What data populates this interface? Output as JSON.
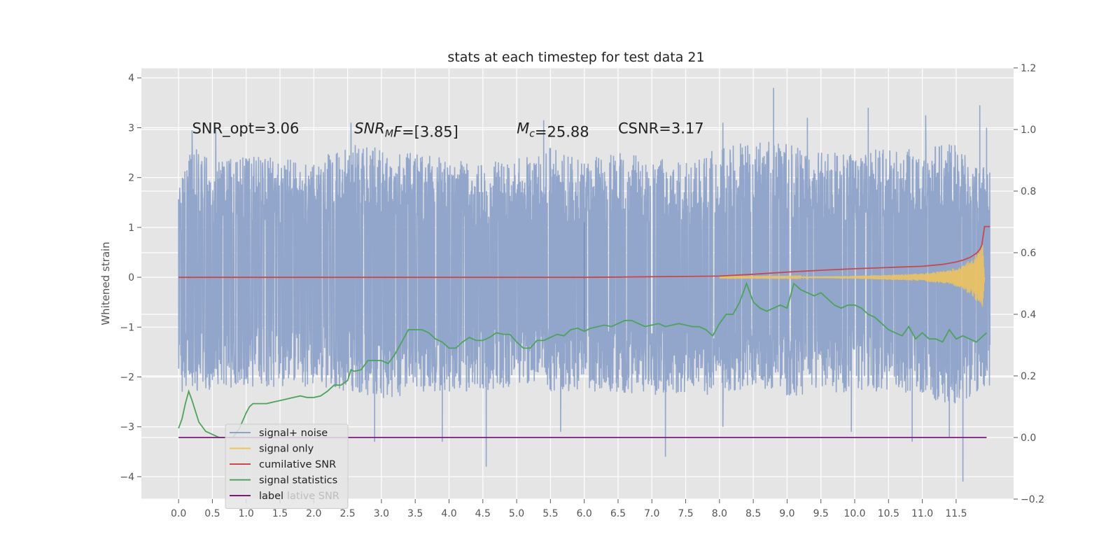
{
  "chart_data": {
    "type": "line",
    "title": "stats at each timestep for test data 21",
    "ylabel": "Whitened strain",
    "ylabel_right": "",
    "xlim": [
      -0.55,
      12.35
    ],
    "ylim": [
      -4.45,
      4.2
    ],
    "ylim_right": [
      -0.2,
      1.2
    ],
    "x_ticks": [
      0.0,
      0.5,
      1.0,
      1.5,
      2.0,
      2.5,
      3.0,
      3.5,
      4.0,
      4.5,
      5.0,
      5.5,
      6.0,
      6.5,
      7.0,
      7.5,
      8.0,
      8.5,
      9.0,
      9.5,
      10.0,
      10.5,
      11.0,
      11.5
    ],
    "x_tick_labels": [
      "0.0",
      "0.5",
      "1.0",
      "1.5",
      "2.0",
      "2.5",
      "3.0",
      "3.5",
      "4.0",
      "4.5",
      "5.0",
      "5.5",
      "6.0",
      "6.5",
      "7.0",
      "7.5",
      "8.0",
      "8.5",
      "9.0",
      "9.5",
      "10.0",
      "10.5",
      "11.0",
      "11.5"
    ],
    "y_ticks": [
      -4,
      -3,
      -2,
      -1,
      0,
      1,
      2,
      3,
      4
    ],
    "y_tick_labels": [
      "−4",
      "−3",
      "−2",
      "−1",
      "0",
      "1",
      "2",
      "3",
      "4"
    ],
    "y_ticks_right": [
      -0.2,
      0.0,
      0.2,
      0.4,
      0.6,
      0.8,
      1.0,
      1.2
    ],
    "y_tick_labels_right": [
      "−0.2",
      "0.0",
      "0.2",
      "0.4",
      "0.6",
      "0.8",
      "1.0",
      "1.2"
    ],
    "grid": true,
    "legend_position": "lower-left",
    "annotations": [
      {
        "x": 0.2,
        "y": 3.0,
        "parts": [
          {
            "t": "SNR_opt=3.06"
          }
        ]
      },
      {
        "x": 2.6,
        "y": 3.0,
        "parts": [
          {
            "t": "SNR",
            "i": true
          },
          {
            "t": "M",
            "i": true,
            "sub": true
          },
          {
            "t": "F",
            "i": true
          },
          {
            "t": "=[3.85]"
          }
        ]
      },
      {
        "x": 5.0,
        "y": 3.0,
        "parts": [
          {
            "t": "M",
            "i": true
          },
          {
            "t": "c",
            "i": true,
            "sub": true
          },
          {
            "t": "=25.88"
          }
        ]
      },
      {
        "x": 6.5,
        "y": 3.0,
        "parts": [
          {
            "t": "CSNR=3.17"
          }
        ]
      }
    ],
    "legend": [
      {
        "name": "signal+ noise",
        "color": "#8da2c9"
      },
      {
        "name": "signal only",
        "color": "#f2c458"
      },
      {
        "name": "cumilative SNR",
        "color": "#c9484a"
      },
      {
        "name": "signal statistics",
        "color": "#4ca35a"
      },
      {
        "name": "label",
        "color": "#7b1a7b"
      }
    ],
    "legend_ghost_text": "lative SNR",
    "series": [
      {
        "name": "signal+ noise",
        "axis": "left",
        "color": "#8da2c9",
        "x_range": [
          0.0,
          12.0
        ],
        "envelope_upper": [
          [
            0.0,
            1.8
          ],
          [
            0.2,
            2.9
          ],
          [
            0.5,
            2.3
          ],
          [
            1.0,
            2.5
          ],
          [
            1.5,
            2.4
          ],
          [
            2.0,
            2.3
          ],
          [
            2.5,
            2.7
          ],
          [
            3.0,
            2.6
          ],
          [
            3.5,
            2.5
          ],
          [
            4.0,
            2.4
          ],
          [
            4.5,
            2.3
          ],
          [
            5.0,
            2.4
          ],
          [
            5.5,
            2.6
          ],
          [
            6.0,
            2.4
          ],
          [
            6.5,
            2.5
          ],
          [
            7.0,
            2.4
          ],
          [
            7.5,
            2.3
          ],
          [
            8.0,
            2.6
          ],
          [
            8.5,
            2.8
          ],
          [
            9.0,
            2.7
          ],
          [
            9.5,
            2.5
          ],
          [
            10.0,
            2.5
          ],
          [
            10.5,
            2.6
          ],
          [
            11.0,
            2.6
          ],
          [
            11.5,
            2.7
          ],
          [
            11.95,
            2.2
          ]
        ],
        "envelope_lower": [
          [
            0.0,
            -2.3
          ],
          [
            0.5,
            -2.3
          ],
          [
            1.0,
            -2.2
          ],
          [
            1.5,
            -2.2
          ],
          [
            2.0,
            -2.2
          ],
          [
            2.5,
            -2.3
          ],
          [
            3.0,
            -2.5
          ],
          [
            3.5,
            -2.3
          ],
          [
            4.0,
            -2.3
          ],
          [
            4.5,
            -2.3
          ],
          [
            5.0,
            -2.2
          ],
          [
            5.5,
            -2.3
          ],
          [
            6.0,
            -2.3
          ],
          [
            6.5,
            -2.3
          ],
          [
            7.0,
            -2.4
          ],
          [
            7.5,
            -2.3
          ],
          [
            8.0,
            -2.4
          ],
          [
            8.5,
            -2.2
          ],
          [
            9.0,
            -2.4
          ],
          [
            9.5,
            -2.3
          ],
          [
            10.0,
            -2.4
          ],
          [
            10.5,
            -2.3
          ],
          [
            11.0,
            -2.4
          ],
          [
            11.5,
            -2.6
          ],
          [
            11.95,
            -2.2
          ]
        ],
        "peaks": [
          [
            0.2,
            2.95
          ],
          [
            0.55,
            3.0
          ],
          [
            2.55,
            3.1
          ],
          [
            5.4,
            3.15
          ],
          [
            8.05,
            3.1
          ],
          [
            8.8,
            3.8
          ],
          [
            9.3,
            3.2
          ],
          [
            10.2,
            3.4
          ],
          [
            11.05,
            3.25
          ],
          [
            11.85,
            3.45
          ],
          [
            11.95,
            3.0
          ]
        ],
        "troughs": [
          [
            2.9,
            -3.3
          ],
          [
            3.9,
            -3.3
          ],
          [
            4.55,
            -3.8
          ],
          [
            5.65,
            -3.1
          ],
          [
            7.2,
            -3.6
          ],
          [
            8.05,
            -3.0
          ],
          [
            9.95,
            -3.1
          ],
          [
            10.85,
            -3.3
          ],
          [
            11.4,
            -3.2
          ],
          [
            11.6,
            -4.1
          ]
        ]
      },
      {
        "name": "signal only",
        "axis": "left",
        "color": "#f2c458",
        "envelope": [
          [
            0.0,
            0.0
          ],
          [
            9.0,
            0.01
          ],
          [
            10.0,
            0.03
          ],
          [
            10.5,
            0.05
          ],
          [
            11.0,
            0.08
          ],
          [
            11.4,
            0.15
          ],
          [
            11.6,
            0.25
          ],
          [
            11.75,
            0.4
          ],
          [
            11.85,
            0.55
          ],
          [
            11.9,
            0.7
          ],
          [
            11.92,
            0.0
          ]
        ]
      },
      {
        "name": "cumilative SNR",
        "axis": "right",
        "color": "#c9484a",
        "x": [
          0.0,
          1.0,
          2.0,
          3.0,
          4.0,
          5.0,
          6.0,
          6.5,
          7.0,
          7.5,
          8.0,
          8.5,
          9.0,
          9.5,
          10.0,
          10.5,
          11.0,
          11.3,
          11.5,
          11.6,
          11.7,
          11.8,
          11.85,
          11.88,
          11.92,
          12.0
        ],
        "y": [
          0.52,
          0.52,
          0.52,
          0.52,
          0.52,
          0.52,
          0.52,
          0.521,
          0.522,
          0.523,
          0.524,
          0.53,
          0.537,
          0.543,
          0.548,
          0.552,
          0.556,
          0.562,
          0.57,
          0.576,
          0.584,
          0.598,
          0.61,
          0.625,
          0.685,
          0.685
        ]
      },
      {
        "name": "signal statistics",
        "axis": "right",
        "color": "#4ca35a",
        "x": [
          0.0,
          0.05,
          0.1,
          0.15,
          0.2,
          0.3,
          0.4,
          0.5,
          0.6,
          0.7,
          0.8,
          0.9,
          1.0,
          1.05,
          1.1,
          1.2,
          1.3,
          1.4,
          1.5,
          1.6,
          1.7,
          1.8,
          1.9,
          2.0,
          2.1,
          2.2,
          2.3,
          2.4,
          2.5,
          2.55,
          2.6,
          2.7,
          2.8,
          2.9,
          3.0,
          3.1,
          3.2,
          3.3,
          3.4,
          3.5,
          3.6,
          3.7,
          3.8,
          3.9,
          4.0,
          4.1,
          4.2,
          4.3,
          4.4,
          4.5,
          4.6,
          4.7,
          4.8,
          4.9,
          5.0,
          5.1,
          5.2,
          5.3,
          5.4,
          5.5,
          5.6,
          5.7,
          5.8,
          5.9,
          6.0,
          6.1,
          6.2,
          6.3,
          6.4,
          6.5,
          6.6,
          6.7,
          6.8,
          6.9,
          7.0,
          7.1,
          7.2,
          7.3,
          7.4,
          7.5,
          7.6,
          7.7,
          7.8,
          7.9,
          8.0,
          8.1,
          8.2,
          8.3,
          8.4,
          8.5,
          8.6,
          8.7,
          8.8,
          8.9,
          9.0,
          9.1,
          9.2,
          9.3,
          9.4,
          9.5,
          9.6,
          9.7,
          9.8,
          9.9,
          10.0,
          10.1,
          10.2,
          10.3,
          10.4,
          10.5,
          10.6,
          10.7,
          10.8,
          10.9,
          11.0,
          11.1,
          11.2,
          11.3,
          11.4,
          11.5,
          11.6,
          11.7,
          11.8,
          11.9,
          11.95
        ],
        "y": [
          0.03,
          0.06,
          0.11,
          0.15,
          0.12,
          0.05,
          0.02,
          0.01,
          0.0,
          0.0,
          0.0,
          0.03,
          0.08,
          0.1,
          0.11,
          0.11,
          0.11,
          0.115,
          0.12,
          0.125,
          0.13,
          0.135,
          0.13,
          0.13,
          0.135,
          0.15,
          0.17,
          0.17,
          0.185,
          0.22,
          0.215,
          0.22,
          0.25,
          0.25,
          0.25,
          0.24,
          0.27,
          0.31,
          0.35,
          0.35,
          0.35,
          0.34,
          0.32,
          0.31,
          0.29,
          0.29,
          0.31,
          0.325,
          0.315,
          0.315,
          0.325,
          0.34,
          0.335,
          0.335,
          0.31,
          0.29,
          0.29,
          0.315,
          0.315,
          0.325,
          0.335,
          0.33,
          0.35,
          0.355,
          0.345,
          0.355,
          0.36,
          0.365,
          0.36,
          0.37,
          0.38,
          0.38,
          0.37,
          0.36,
          0.365,
          0.37,
          0.36,
          0.365,
          0.37,
          0.365,
          0.36,
          0.36,
          0.35,
          0.33,
          0.37,
          0.4,
          0.4,
          0.44,
          0.5,
          0.44,
          0.42,
          0.41,
          0.42,
          0.43,
          0.42,
          0.5,
          0.48,
          0.47,
          0.46,
          0.47,
          0.45,
          0.43,
          0.42,
          0.43,
          0.43,
          0.42,
          0.4,
          0.39,
          0.37,
          0.35,
          0.34,
          0.33,
          0.36,
          0.32,
          0.34,
          0.32,
          0.32,
          0.31,
          0.35,
          0.32,
          0.33,
          0.32,
          0.31,
          0.33,
          0.34
        ]
      },
      {
        "name": "label",
        "axis": "right",
        "color": "#7b1a7b",
        "x": [
          0.0,
          11.95
        ],
        "y": [
          0.0,
          0.0
        ]
      }
    ]
  }
}
